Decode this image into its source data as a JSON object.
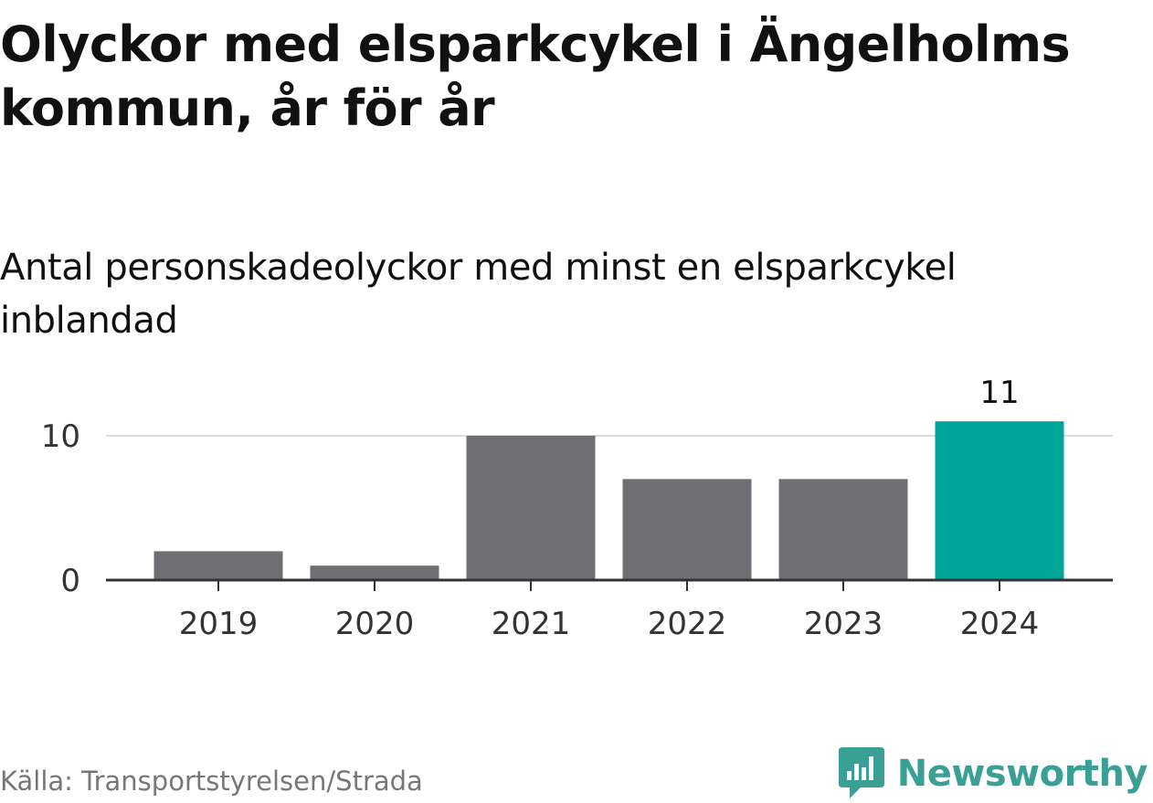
{
  "title": "Olyckor med elsparkcykel i Ängelholms kommun, år för år",
  "subtitle": "Antal personskadeolyckor med minst en elsparkcykel inblandad",
  "source": "Källa: Transportstyrelsen/Strada",
  "brand": {
    "name": "Newsworthy",
    "icon": "newsworthy-logo-icon",
    "color": "#3aa095"
  },
  "chart_data": {
    "type": "bar",
    "categories": [
      "2019",
      "2020",
      "2021",
      "2022",
      "2023",
      "2024"
    ],
    "values": [
      2,
      1,
      10,
      7,
      7,
      11
    ],
    "colors": [
      "#6f6e73",
      "#6f6e73",
      "#6f6e73",
      "#6f6e73",
      "#6f6e73",
      "#00a498"
    ],
    "highlight": {
      "category": "2024",
      "label": "11"
    },
    "yticks": [
      0,
      10
    ],
    "ylim": [
      0,
      11
    ],
    "grid": true,
    "xlabel": "",
    "ylabel": ""
  }
}
